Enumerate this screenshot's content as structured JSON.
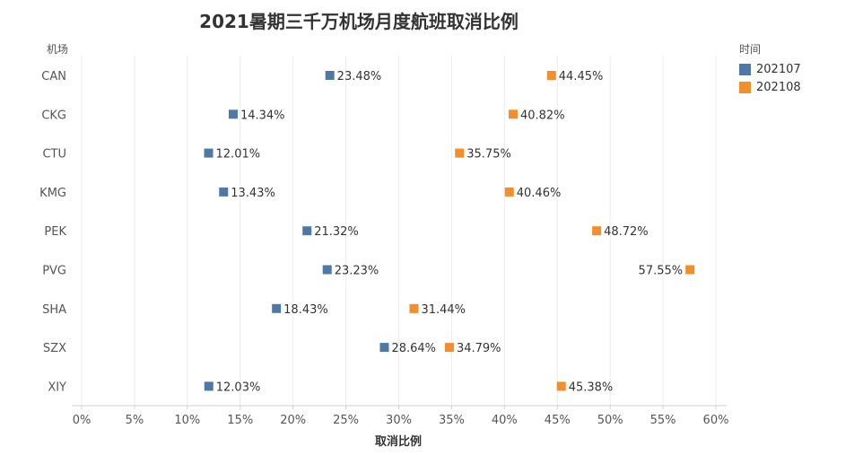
{
  "title": "2021暑期三千万机场月度航班取消比例",
  "row_header": "机场",
  "legend": {
    "title": "时间",
    "items": [
      {
        "label": "202107",
        "color": "#4e79a7"
      },
      {
        "label": "202108",
        "color": "#f28e2b"
      }
    ]
  },
  "chart_data": {
    "type": "scatter",
    "title": "2021暑期三千万机场月度航班取消比例",
    "xlabel": "取消比例",
    "ylabel": "机场",
    "xlim": [
      0,
      60
    ],
    "x_ticks": [
      "0%",
      "5%",
      "10%",
      "15%",
      "20%",
      "25%",
      "30%",
      "35%",
      "40%",
      "45%",
      "50%",
      "55%",
      "60%"
    ],
    "categories": [
      "CAN",
      "CKG",
      "CTU",
      "KMG",
      "PEK",
      "PVG",
      "SHA",
      "SZX",
      "XIY"
    ],
    "series": [
      {
        "name": "202107",
        "color": "#4e79a7",
        "values": [
          23.48,
          14.34,
          12.01,
          13.43,
          21.32,
          23.23,
          18.43,
          28.64,
          12.03
        ],
        "labels": [
          "23.48%",
          "14.34%",
          "12.01%",
          "13.43%",
          "21.32%",
          "23.23%",
          "18.43%",
          "28.64%",
          "12.03%"
        ]
      },
      {
        "name": "202108",
        "color": "#f28e2b",
        "values": [
          44.45,
          40.82,
          35.75,
          40.46,
          48.72,
          57.55,
          31.44,
          34.79,
          45.38
        ],
        "labels": [
          "44.45%",
          "40.82%",
          "35.75%",
          "40.46%",
          "48.72%",
          "57.55%",
          "31.44%",
          "34.79%",
          "45.38%"
        ]
      }
    ],
    "label_left": [
      [
        false,
        false,
        false,
        false,
        false,
        false,
        false,
        false,
        false
      ],
      [
        false,
        false,
        false,
        false,
        false,
        true,
        false,
        false,
        false
      ]
    ],
    "grid": true,
    "legend_position": "top-right"
  }
}
